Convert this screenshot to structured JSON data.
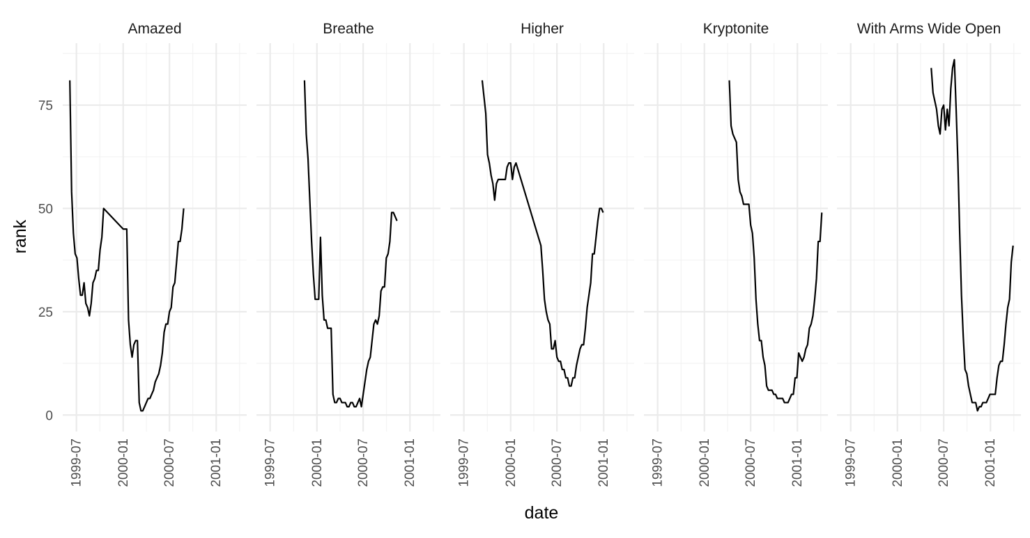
{
  "chart_data": {
    "type": "line",
    "facet_by": "track",
    "xlabel": "date",
    "ylabel": "rank",
    "x_type": "date",
    "xlim": [
      "1999-05-08",
      "2001-05-01"
    ],
    "ylim": [
      -4,
      90
    ],
    "x_ticks": [
      "1999-07-01",
      "2000-01-01",
      "2000-07-01",
      "2001-01-01"
    ],
    "x_tick_labels": [
      "1999-07",
      "2000-01",
      "2000-07",
      "2001-01"
    ],
    "y_ticks": [
      0,
      25,
      50,
      75
    ],
    "y_tick_labels": [
      "0",
      "25",
      "50",
      "75"
    ],
    "grid": true,
    "legend": "none",
    "line_color": "#000000",
    "panels": [
      {
        "title": "Amazed",
        "points": [
          [
            "1999-06-05",
            81
          ],
          [
            "1999-06-12",
            54
          ],
          [
            "1999-06-19",
            44
          ],
          [
            "1999-06-26",
            39
          ],
          [
            "1999-07-03",
            38
          ],
          [
            "1999-07-10",
            33
          ],
          [
            "1999-07-17",
            29
          ],
          [
            "1999-07-24",
            29
          ],
          [
            "1999-07-31",
            32
          ],
          [
            "1999-08-07",
            27
          ],
          [
            "1999-08-14",
            26
          ],
          [
            "1999-08-21",
            24
          ],
          [
            "1999-08-28",
            27
          ],
          [
            "1999-09-04",
            32
          ],
          [
            "1999-09-11",
            33
          ],
          [
            "1999-09-18",
            35
          ],
          [
            "1999-09-25",
            35
          ],
          [
            "1999-10-02",
            40
          ],
          [
            "1999-10-09",
            43
          ],
          [
            "1999-10-16",
            50
          ],
          [
            "2000-01-01",
            45
          ],
          [
            "2000-01-08",
            45
          ],
          [
            "2000-01-15",
            45
          ],
          [
            "2000-01-22",
            23
          ],
          [
            "2000-01-29",
            17
          ],
          [
            "2000-02-05",
            14
          ],
          [
            "2000-02-12",
            17
          ],
          [
            "2000-02-19",
            18
          ],
          [
            "2000-02-26",
            18
          ],
          [
            "2000-03-04",
            3
          ],
          [
            "2000-03-11",
            1
          ],
          [
            "2000-03-18",
            1
          ],
          [
            "2000-03-25",
            2
          ],
          [
            "2000-04-01",
            3
          ],
          [
            "2000-04-08",
            4
          ],
          [
            "2000-04-15",
            4
          ],
          [
            "2000-04-22",
            5
          ],
          [
            "2000-04-29",
            6
          ],
          [
            "2000-05-06",
            8
          ],
          [
            "2000-05-13",
            9
          ],
          [
            "2000-05-20",
            10
          ],
          [
            "2000-05-27",
            12
          ],
          [
            "2000-06-03",
            15
          ],
          [
            "2000-06-10",
            20
          ],
          [
            "2000-06-17",
            22
          ],
          [
            "2000-06-24",
            22
          ],
          [
            "2000-07-01",
            25
          ],
          [
            "2000-07-08",
            26
          ],
          [
            "2000-07-15",
            31
          ],
          [
            "2000-07-22",
            32
          ],
          [
            "2000-07-29",
            37
          ],
          [
            "2000-08-05",
            42
          ],
          [
            "2000-08-12",
            42
          ],
          [
            "2000-08-19",
            45
          ],
          [
            "2000-08-26",
            50
          ]
        ]
      },
      {
        "title": "Breathe",
        "points": [
          [
            "1999-11-13",
            81
          ],
          [
            "1999-11-20",
            68
          ],
          [
            "1999-11-27",
            62
          ],
          [
            "1999-12-04",
            52
          ],
          [
            "1999-12-11",
            42
          ],
          [
            "1999-12-18",
            34
          ],
          [
            "1999-12-25",
            28
          ],
          [
            "2000-01-01",
            28
          ],
          [
            "2000-01-08",
            28
          ],
          [
            "2000-01-15",
            43
          ],
          [
            "2000-01-22",
            29
          ],
          [
            "2000-01-29",
            23
          ],
          [
            "2000-02-05",
            23
          ],
          [
            "2000-02-12",
            21
          ],
          [
            "2000-02-19",
            21
          ],
          [
            "2000-02-26",
            21
          ],
          [
            "2000-03-04",
            5
          ],
          [
            "2000-03-11",
            3
          ],
          [
            "2000-03-18",
            3
          ],
          [
            "2000-03-25",
            4
          ],
          [
            "2000-04-01",
            4
          ],
          [
            "2000-04-08",
            3
          ],
          [
            "2000-04-15",
            3
          ],
          [
            "2000-04-22",
            3
          ],
          [
            "2000-04-29",
            2
          ],
          [
            "2000-05-06",
            2
          ],
          [
            "2000-05-13",
            3
          ],
          [
            "2000-05-20",
            3
          ],
          [
            "2000-05-27",
            2
          ],
          [
            "2000-06-03",
            2
          ],
          [
            "2000-06-10",
            3
          ],
          [
            "2000-06-17",
            4
          ],
          [
            "2000-06-24",
            2
          ],
          [
            "2000-07-01",
            5
          ],
          [
            "2000-07-08",
            8
          ],
          [
            "2000-07-15",
            11
          ],
          [
            "2000-07-22",
            13
          ],
          [
            "2000-07-29",
            14
          ],
          [
            "2000-08-05",
            18
          ],
          [
            "2000-08-12",
            22
          ],
          [
            "2000-08-19",
            23
          ],
          [
            "2000-08-26",
            22
          ],
          [
            "2000-09-02",
            24
          ],
          [
            "2000-09-09",
            30
          ],
          [
            "2000-09-16",
            31
          ],
          [
            "2000-09-23",
            31
          ],
          [
            "2000-09-30",
            38
          ],
          [
            "2000-10-07",
            39
          ],
          [
            "2000-10-14",
            42
          ],
          [
            "2000-10-21",
            49
          ],
          [
            "2000-10-28",
            49
          ],
          [
            "2000-11-04",
            48
          ],
          [
            "2000-11-11",
            47
          ]
        ]
      },
      {
        "title": "Higher",
        "points": [
          [
            "1999-09-11",
            81
          ],
          [
            "1999-09-18",
            77
          ],
          [
            "1999-09-25",
            73
          ],
          [
            "1999-10-02",
            63
          ],
          [
            "1999-10-09",
            61
          ],
          [
            "1999-10-16",
            58
          ],
          [
            "1999-10-23",
            56
          ],
          [
            "1999-10-30",
            52
          ],
          [
            "1999-11-06",
            56
          ],
          [
            "1999-11-13",
            57
          ],
          [
            "1999-11-20",
            57
          ],
          [
            "1999-11-27",
            57
          ],
          [
            "1999-12-04",
            57
          ],
          [
            "1999-12-11",
            57
          ],
          [
            "1999-12-18",
            60
          ],
          [
            "1999-12-25",
            61
          ],
          [
            "2000-01-01",
            61
          ],
          [
            "2000-01-08",
            57
          ],
          [
            "2000-01-15",
            60
          ],
          [
            "2000-01-22",
            61
          ],
          [
            "2000-04-29",
            41
          ],
          [
            "2000-05-06",
            35
          ],
          [
            "2000-05-13",
            28
          ],
          [
            "2000-05-20",
            25
          ],
          [
            "2000-05-27",
            23
          ],
          [
            "2000-06-03",
            22
          ],
          [
            "2000-06-10",
            16
          ],
          [
            "2000-06-17",
            16
          ],
          [
            "2000-06-24",
            18
          ],
          [
            "2000-07-01",
            14
          ],
          [
            "2000-07-08",
            13
          ],
          [
            "2000-07-15",
            13
          ],
          [
            "2000-07-22",
            11
          ],
          [
            "2000-07-29",
            11
          ],
          [
            "2000-08-05",
            9
          ],
          [
            "2000-08-12",
            9
          ],
          [
            "2000-08-19",
            7
          ],
          [
            "2000-08-26",
            7
          ],
          [
            "2000-09-02",
            9
          ],
          [
            "2000-09-09",
            9
          ],
          [
            "2000-09-16",
            12
          ],
          [
            "2000-09-23",
            14
          ],
          [
            "2000-09-30",
            16
          ],
          [
            "2000-10-07",
            17
          ],
          [
            "2000-10-14",
            17
          ],
          [
            "2000-10-21",
            21
          ],
          [
            "2000-10-28",
            26
          ],
          [
            "2000-11-04",
            29
          ],
          [
            "2000-11-11",
            32
          ],
          [
            "2000-11-18",
            39
          ],
          [
            "2000-11-25",
            39
          ],
          [
            "2000-12-02",
            43
          ],
          [
            "2000-12-09",
            47
          ],
          [
            "2000-12-16",
            50
          ],
          [
            "2000-12-23",
            50
          ],
          [
            "2000-12-30",
            49
          ]
        ]
      },
      {
        "title": "Kryptonite",
        "points": [
          [
            "2000-04-08",
            81
          ],
          [
            "2000-04-15",
            70
          ],
          [
            "2000-04-22",
            68
          ],
          [
            "2000-04-29",
            67
          ],
          [
            "2000-05-06",
            66
          ],
          [
            "2000-05-13",
            57
          ],
          [
            "2000-05-20",
            54
          ],
          [
            "2000-05-27",
            53
          ],
          [
            "2000-06-03",
            51
          ],
          [
            "2000-06-10",
            51
          ],
          [
            "2000-06-17",
            51
          ],
          [
            "2000-06-24",
            51
          ],
          [
            "2000-07-01",
            46
          ],
          [
            "2000-07-08",
            44
          ],
          [
            "2000-07-15",
            38
          ],
          [
            "2000-07-22",
            28
          ],
          [
            "2000-07-29",
            22
          ],
          [
            "2000-08-05",
            18
          ],
          [
            "2000-08-12",
            18
          ],
          [
            "2000-08-19",
            14
          ],
          [
            "2000-08-26",
            12
          ],
          [
            "2000-09-02",
            7
          ],
          [
            "2000-09-09",
            6
          ],
          [
            "2000-09-16",
            6
          ],
          [
            "2000-09-23",
            6
          ],
          [
            "2000-09-30",
            5
          ],
          [
            "2000-10-07",
            5
          ],
          [
            "2000-10-14",
            4
          ],
          [
            "2000-10-21",
            4
          ],
          [
            "2000-10-28",
            4
          ],
          [
            "2000-11-04",
            4
          ],
          [
            "2000-11-11",
            3
          ],
          [
            "2000-11-18",
            3
          ],
          [
            "2000-11-25",
            3
          ],
          [
            "2000-12-02",
            4
          ],
          [
            "2000-12-09",
            5
          ],
          [
            "2000-12-16",
            5
          ],
          [
            "2000-12-23",
            9
          ],
          [
            "2000-12-30",
            9
          ],
          [
            "2001-01-06",
            15
          ],
          [
            "2001-01-13",
            14
          ],
          [
            "2001-01-20",
            13
          ],
          [
            "2001-01-27",
            14
          ],
          [
            "2001-02-03",
            16
          ],
          [
            "2001-02-10",
            17
          ],
          [
            "2001-02-17",
            21
          ],
          [
            "2001-02-24",
            22
          ],
          [
            "2001-03-03",
            24
          ],
          [
            "2001-03-10",
            28
          ],
          [
            "2001-03-17",
            33
          ],
          [
            "2001-03-24",
            42
          ],
          [
            "2001-03-31",
            42
          ],
          [
            "2001-04-07",
            49
          ]
        ]
      },
      {
        "title": "With Arms Wide Open",
        "points": [
          [
            "2000-05-13",
            84
          ],
          [
            "2000-05-20",
            78
          ],
          [
            "2000-05-27",
            76
          ],
          [
            "2000-06-03",
            74
          ],
          [
            "2000-06-10",
            70
          ],
          [
            "2000-06-17",
            68
          ],
          [
            "2000-06-24",
            74
          ],
          [
            "2000-07-01",
            75
          ],
          [
            "2000-07-08",
            69
          ],
          [
            "2000-07-15",
            74
          ],
          [
            "2000-07-22",
            70
          ],
          [
            "2000-07-29",
            79
          ],
          [
            "2000-08-05",
            84
          ],
          [
            "2000-08-12",
            86
          ],
          [
            "2000-08-19",
            74
          ],
          [
            "2000-08-26",
            61
          ],
          [
            "2000-09-02",
            44
          ],
          [
            "2000-09-09",
            29
          ],
          [
            "2000-09-16",
            19
          ],
          [
            "2000-09-23",
            11
          ],
          [
            "2000-09-30",
            10
          ],
          [
            "2000-10-07",
            7
          ],
          [
            "2000-10-14",
            5
          ],
          [
            "2000-10-21",
            3
          ],
          [
            "2000-10-28",
            3
          ],
          [
            "2000-11-04",
            3
          ],
          [
            "2000-11-11",
            1
          ],
          [
            "2000-11-18",
            2
          ],
          [
            "2000-11-25",
            2
          ],
          [
            "2000-12-02",
            3
          ],
          [
            "2000-12-09",
            3
          ],
          [
            "2000-12-16",
            3
          ],
          [
            "2000-12-23",
            4
          ],
          [
            "2000-12-30",
            5
          ],
          [
            "2001-01-06",
            5
          ],
          [
            "2001-01-13",
            5
          ],
          [
            "2001-01-20",
            5
          ],
          [
            "2001-01-27",
            9
          ],
          [
            "2001-02-03",
            12
          ],
          [
            "2001-02-10",
            13
          ],
          [
            "2001-02-17",
            13
          ],
          [
            "2001-02-24",
            17
          ],
          [
            "2001-03-03",
            22
          ],
          [
            "2001-03-10",
            26
          ],
          [
            "2001-03-17",
            28
          ],
          [
            "2001-03-24",
            37
          ],
          [
            "2001-03-31",
            41
          ]
        ]
      }
    ]
  }
}
